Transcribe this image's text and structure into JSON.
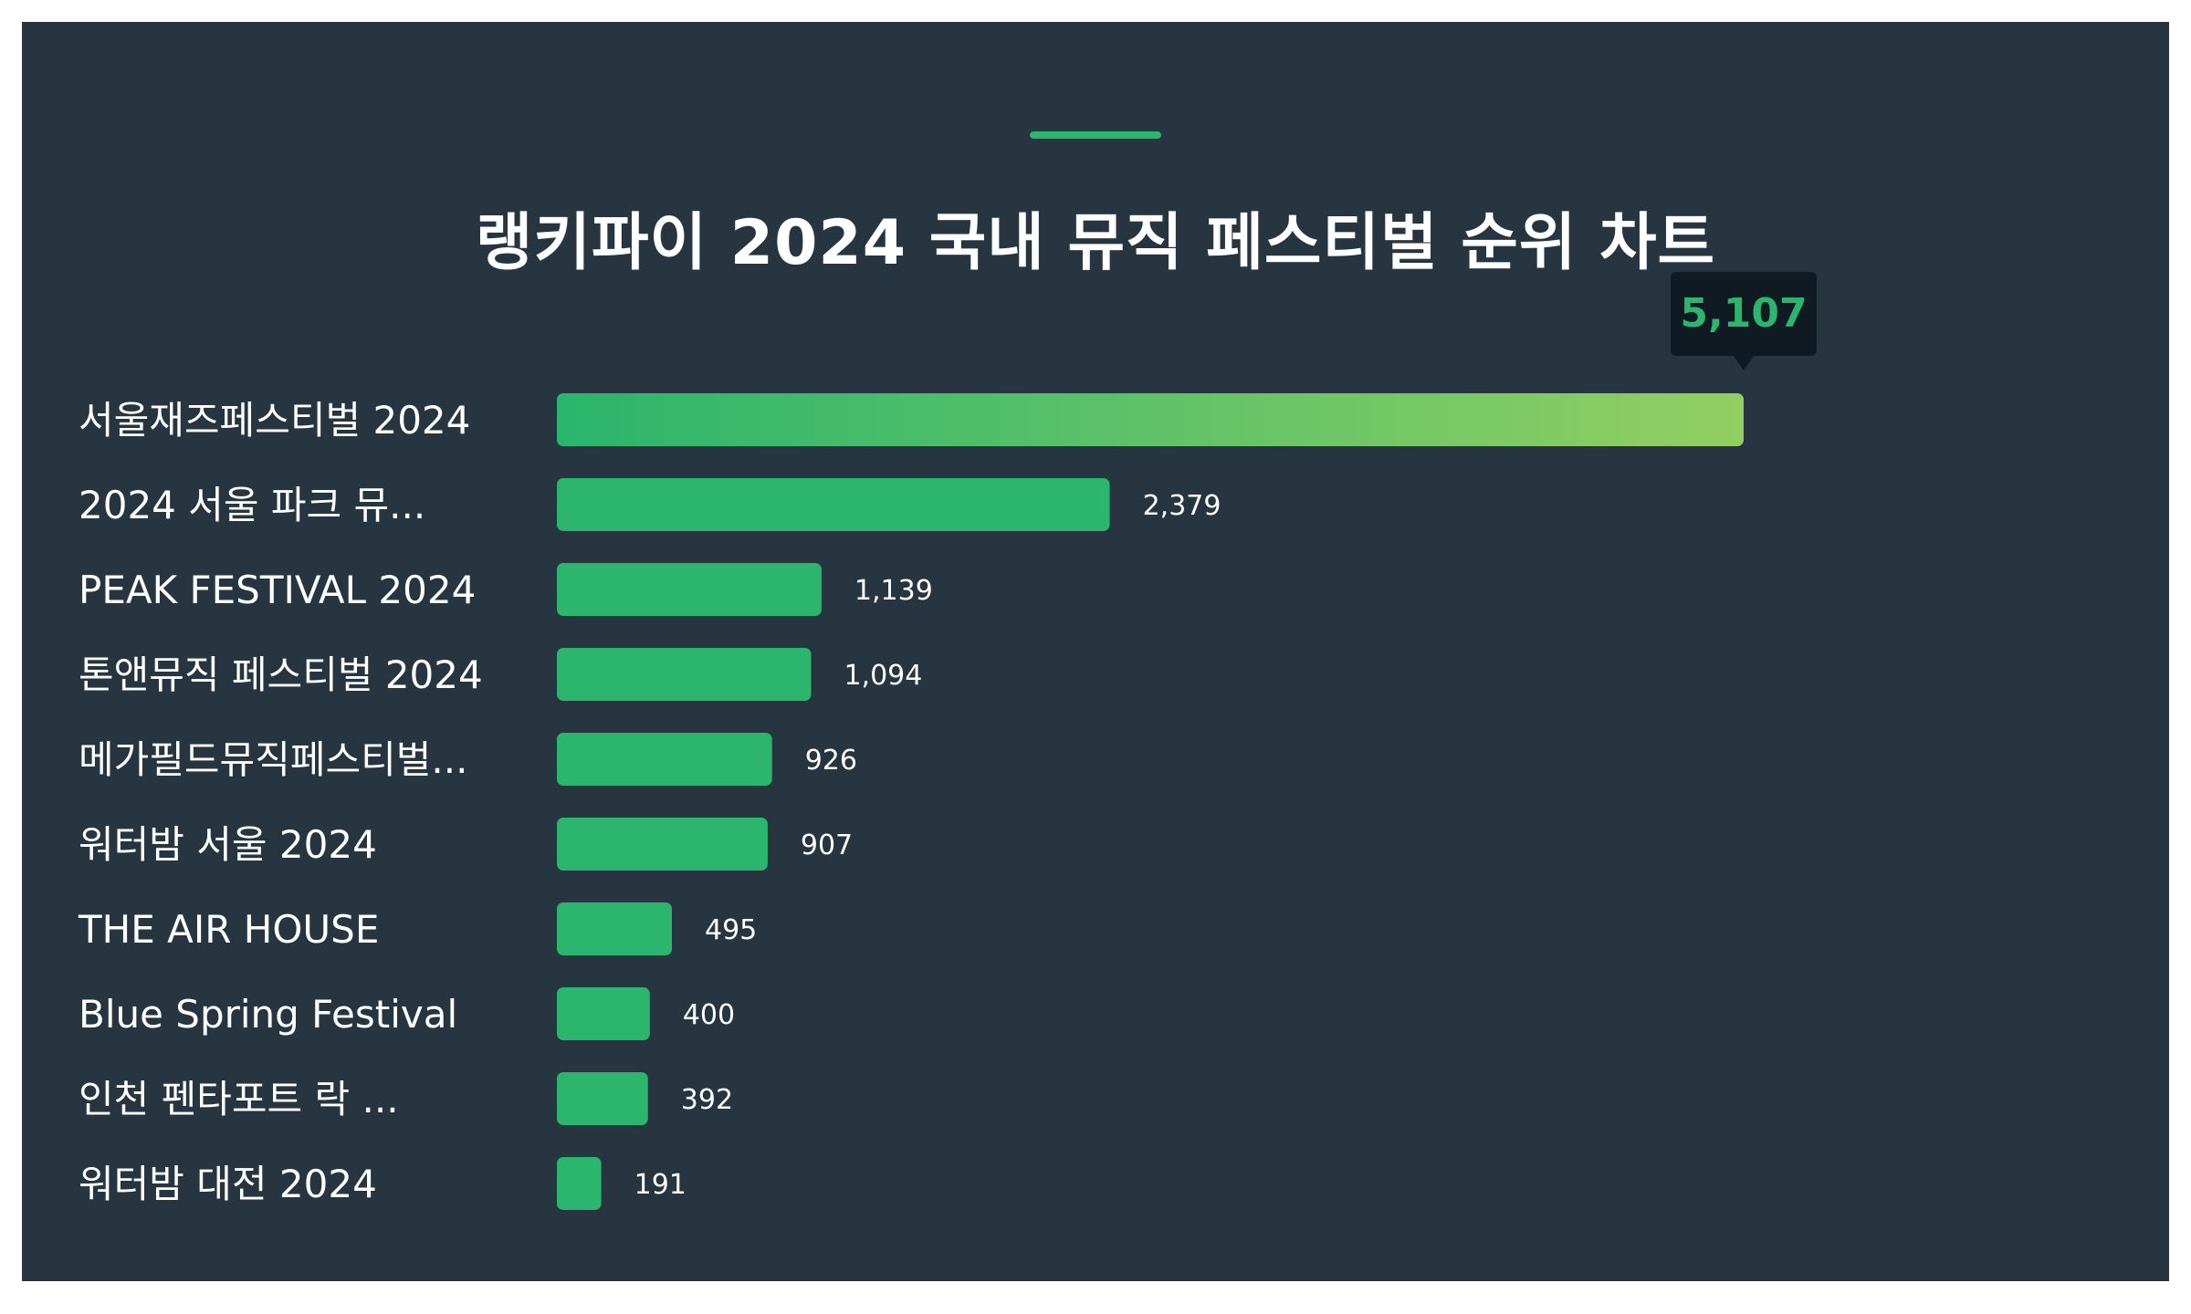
{
  "title": "랭키파이 2024 국내 뮤직 페스티벌 순위 차트",
  "colors": {
    "background": "#263540",
    "bar": "#2bb56d",
    "bar_gradient_end": "#92cf62",
    "accent": "#2bb56d",
    "tooltip_bg": "#0f1a22",
    "tooltip_text": "#2bb56d",
    "text": "#ffffff"
  },
  "chart_data": {
    "type": "bar",
    "orientation": "horizontal",
    "categories": [
      "서울재즈페스티벌 2024",
      "2024 서울 파크 뮤...",
      "PEAK FESTIVAL 2024",
      "톤앤뮤직 페스티벌 2024",
      "메가필드뮤직페스티벌...",
      "워터밤 서울 2024",
      "THE AIR HOUSE",
      "Blue Spring Festival",
      "인천 펜타포트 락 ...",
      "워터밤 대전 2024"
    ],
    "values": [
      5107,
      2379,
      1139,
      1094,
      926,
      907,
      495,
      400,
      392,
      191
    ],
    "value_labels": [
      "5,107",
      "2,379",
      "1,139",
      "1,094",
      "926",
      "907",
      "495",
      "400",
      "392",
      "191"
    ],
    "highlight_index": 0,
    "xlim": [
      0,
      5107
    ],
    "grid": false,
    "legend": "none"
  }
}
